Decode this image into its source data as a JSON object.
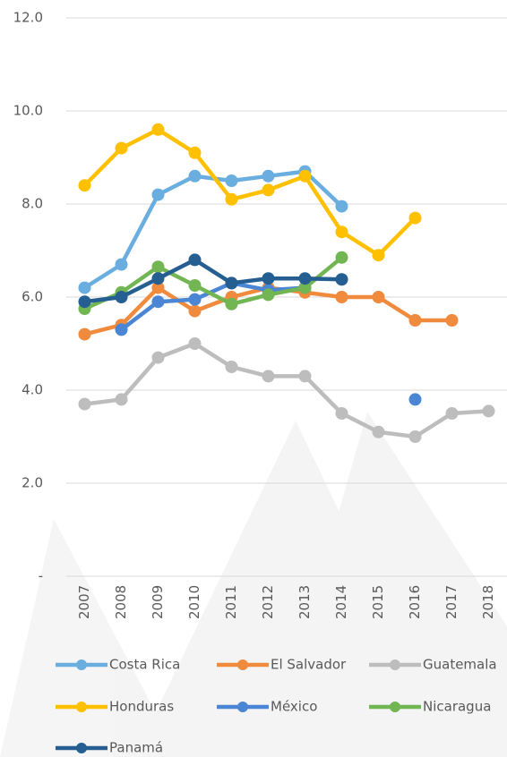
{
  "chart_data": {
    "type": "line",
    "categories": [
      "2007",
      "2008",
      "2009",
      "2010",
      "2011",
      "2012",
      "2013",
      "2014",
      "2015",
      "2016",
      "2017",
      "2018"
    ],
    "series": [
      {
        "name": "Costa Rica",
        "color": "#6aaee0",
        "values": [
          6.2,
          6.7,
          8.2,
          8.6,
          8.5,
          8.6,
          8.7,
          7.95,
          null,
          null,
          null,
          null
        ]
      },
      {
        "name": "El Salvador",
        "color": "#f08a3c",
        "values": [
          5.2,
          5.4,
          6.2,
          5.7,
          6.0,
          6.2,
          6.1,
          6.0,
          6.0,
          5.5,
          5.5,
          null
        ]
      },
      {
        "name": "Guatemala",
        "color": "#bdbdbd",
        "values": [
          3.7,
          3.8,
          4.7,
          5.0,
          4.5,
          4.3,
          4.3,
          3.5,
          3.1,
          3.0,
          3.5,
          3.55
        ]
      },
      {
        "name": "Honduras",
        "color": "#ffc000",
        "values": [
          8.4,
          9.2,
          9.6,
          9.1,
          8.1,
          8.3,
          8.6,
          7.4,
          6.9,
          7.7,
          null,
          null
        ]
      },
      {
        "name": "México",
        "color": "#4a86d4",
        "values": [
          null,
          5.3,
          5.9,
          5.95,
          6.3,
          6.15,
          6.2,
          null,
          null,
          3.8,
          null,
          null
        ]
      },
      {
        "name": "Nicaragua",
        "color": "#72b653",
        "values": [
          5.75,
          6.1,
          6.65,
          6.25,
          5.85,
          6.05,
          6.2,
          6.85,
          null,
          null,
          null,
          null
        ]
      },
      {
        "name": "Panamá",
        "color": "#255e91",
        "values": [
          5.9,
          6.0,
          6.4,
          6.8,
          6.3,
          6.4,
          6.4,
          6.38,
          null,
          null,
          null,
          null
        ]
      }
    ],
    "ylim": [
      0,
      12
    ],
    "yticks": [
      {
        "value": 0,
        "label": "-"
      },
      {
        "value": 2,
        "label": "2.0"
      },
      {
        "value": 4,
        "label": "4.0"
      },
      {
        "value": 6,
        "label": "6.0"
      },
      {
        "value": 8,
        "label": "8.0"
      },
      {
        "value": 10,
        "label": "10.0"
      },
      {
        "value": 12,
        "label": "12.0"
      }
    ],
    "grid": true,
    "legend": "bottom"
  }
}
